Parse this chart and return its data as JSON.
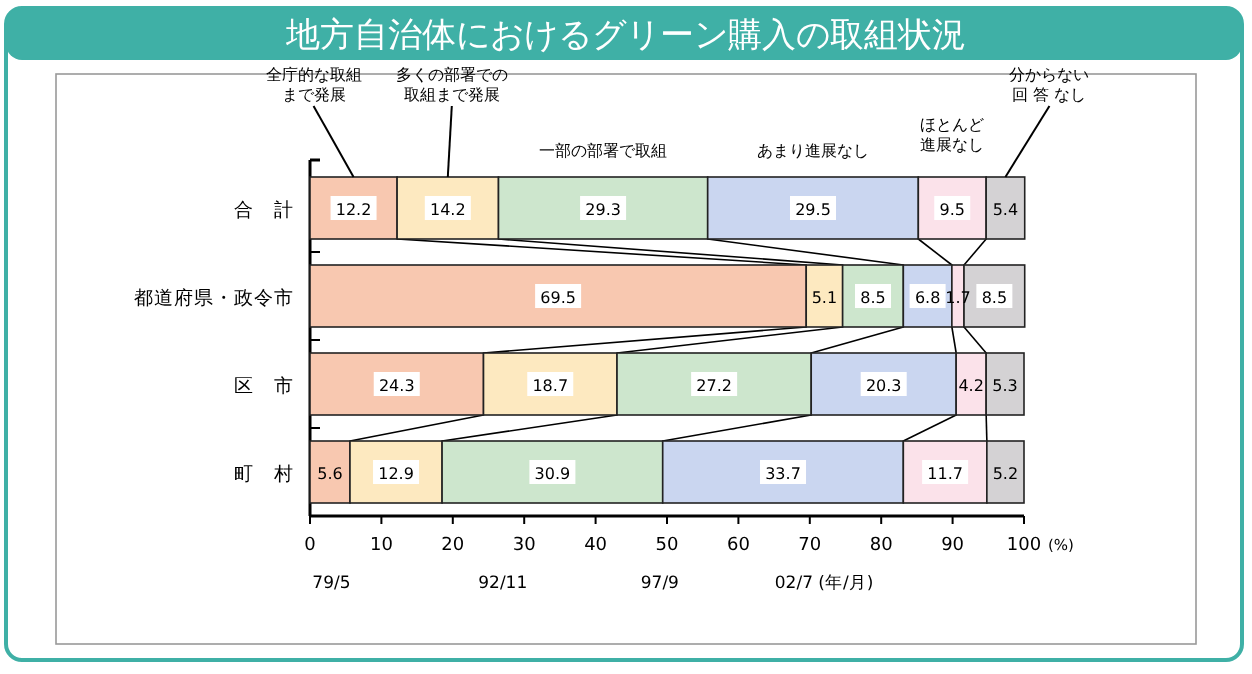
{
  "chart_data": {
    "type": "bar",
    "orientation": "horizontal",
    "stacked": true,
    "title": "地方自治体におけるグリーン購入の取組状況",
    "categories": [
      "合　計",
      "都道府県・政令市",
      "区　市",
      "町　村"
    ],
    "series": [
      {
        "name": "全庁的な取組まで発展",
        "color": "#f8c8b0",
        "values": [
          12.2,
          69.5,
          24.3,
          5.6
        ]
      },
      {
        "name": "多くの部署での取組まで発展",
        "color": "#fde9c0",
        "values": [
          14.2,
          5.1,
          18.7,
          12.9
        ]
      },
      {
        "name": "一部の部署で取組",
        "color": "#cde6cd",
        "values": [
          29.3,
          8.5,
          27.2,
          30.9
        ]
      },
      {
        "name": "あまり進展なし",
        "color": "#cad6f0",
        "values": [
          29.5,
          6.8,
          20.3,
          33.7
        ]
      },
      {
        "name": "ほとんど進展なし",
        "color": "#fbe2ea",
        "values": [
          9.5,
          1.7,
          4.2,
          11.7
        ]
      },
      {
        "name": "分からない回 答 なし",
        "color": "#d4d2d4",
        "values": [
          5.4,
          8.5,
          5.3,
          5.2
        ]
      }
    ],
    "xlim": [
      0,
      100
    ],
    "xticks": [
      0,
      10,
      20,
      30,
      40,
      50,
      60,
      70,
      80,
      90,
      100
    ],
    "xlabel": "(%)",
    "data_labels": true,
    "legend": "top",
    "annotations": [
      "79/5",
      "92/11",
      "97/9",
      "02/7 (年/月)"
    ]
  }
}
